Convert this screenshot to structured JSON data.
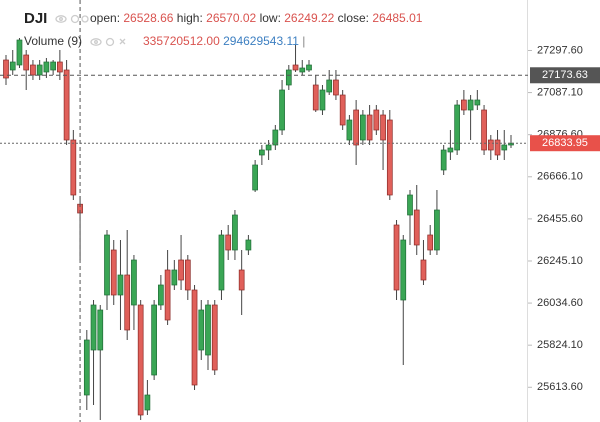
{
  "chart_data": {
    "type": "candlestick",
    "legend": {
      "symbol": "DJI",
      "open_label": "open:",
      "open": "26528.66",
      "high_label": "high:",
      "high": "26570.02",
      "low_label": "low:",
      "low": "26249.22",
      "close_label": "close:",
      "close": "26485.01",
      "volume_label": "Volume (9)",
      "volume": "335720512.00",
      "volume_ma": "294629543.11",
      "separator": "|"
    },
    "open": [
      27250,
      27200,
      27225,
      27275,
      27225,
      27175,
      27190,
      27200,
      27240,
      27200,
      26850,
      26529,
      25575,
      25800,
      25800,
      26075,
      26300,
      26075,
      26175,
      26025,
      26025,
      25500,
      25675,
      26025,
      26200,
      26125,
      26250,
      26250,
      26100,
      25800,
      25775,
      26025,
      26100,
      26375,
      26300,
      26200,
      26300,
      26600,
      26775,
      26800,
      26825,
      26900,
      27125,
      27225,
      27190,
      27200,
      27125,
      27000,
      27090,
      27150,
      27075,
      26850,
      27000,
      26850,
      26975,
      27000,
      26975,
      26950,
      26425,
      26050,
      26475,
      26500,
      26250,
      26375,
      26300,
      26700,
      26790,
      26800,
      27050,
      27000,
      27025,
      27000,
      26850,
      26850,
      26800,
      26825
    ],
    "high": [
      27275,
      27300,
      27360,
      27300,
      27250,
      27250,
      27260,
      27250,
      27300,
      27250,
      26900,
      26570,
      25900,
      26050,
      26025,
      26400,
      26350,
      26350,
      26400,
      26275,
      26050,
      25650,
      26050,
      26175,
      26300,
      26250,
      26375,
      26275,
      26125,
      26050,
      26050,
      26050,
      26400,
      26425,
      26500,
      26300,
      26375,
      26750,
      26825,
      26850,
      26925,
      27150,
      27225,
      27325,
      27250,
      27250,
      27175,
      27125,
      27200,
      27200,
      27100,
      26975,
      27050,
      27000,
      27025,
      27025,
      27000,
      27000,
      26450,
      26375,
      26600,
      26625,
      26350,
      26425,
      26600,
      26825,
      26900,
      27050,
      27100,
      27075,
      27100,
      27025,
      26875,
      26900,
      26900,
      26875
    ],
    "low": [
      27125,
      27175,
      27210,
      27100,
      27150,
      27150,
      27160,
      27175,
      27150,
      26825,
      26550,
      26249,
      25500,
      25525,
      25450,
      26000,
      26025,
      25900,
      25850,
      25900,
      25450,
      25475,
      25650,
      26000,
      25925,
      26100,
      26100,
      26050,
      25600,
      25750,
      25700,
      25675,
      26050,
      26250,
      26250,
      25975,
      26275,
      26590,
      26725,
      26750,
      26800,
      26875,
      27100,
      27190,
      27175,
      27190,
      26990,
      26975,
      27075,
      27050,
      26900,
      26825,
      26725,
      26825,
      26825,
      26875,
      26700,
      26550,
      26050,
      25725,
      26325,
      26275,
      26125,
      26275,
      26275,
      26675,
      26750,
      26775,
      26975,
      26850,
      27000,
      26775,
      26750,
      26750,
      26750,
      26810
    ],
    "close": [
      27160,
      27240,
      27350,
      27200,
      27175,
      27225,
      27240,
      27240,
      27190,
      26850,
      26575,
      26485,
      25850,
      26025,
      26000,
      26375,
      26075,
      26175,
      25900,
      26250,
      25475,
      25575,
      26025,
      26125,
      25950,
      26200,
      26150,
      26100,
      25625,
      26000,
      26025,
      25700,
      26375,
      26300,
      26475,
      26100,
      26350,
      26725,
      26800,
      26825,
      26900,
      27100,
      27200,
      27200,
      27210,
      27225,
      27000,
      27100,
      27150,
      27075,
      26925,
      26950,
      26825,
      26975,
      26850,
      26900,
      26850,
      26575,
      26100,
      26350,
      26575,
      26325,
      26150,
      26300,
      26500,
      26800,
      26810,
      27025,
      27000,
      27050,
      27050,
      26800,
      26800,
      26775,
      26825,
      26834
    ],
    "up_color": "#3aa655",
    "down_color": "#e0605a",
    "ylim": [
      25440,
      27550
    ],
    "yticks": [
      {
        "value": 27297.6,
        "label": "27297.60"
      },
      {
        "value": 27087.1,
        "label": "27087.10"
      },
      {
        "value": 26876.6,
        "label": "26876.60"
      },
      {
        "value": 26666.1,
        "label": "26666.10"
      },
      {
        "value": 26455.6,
        "label": "26455.60"
      },
      {
        "value": 26245.1,
        "label": "26245.10"
      },
      {
        "value": 26034.6,
        "label": "26034.60"
      },
      {
        "value": 25824.1,
        "label": "25824.10"
      },
      {
        "value": 25613.6,
        "label": "25613.60"
      }
    ],
    "crosshair": {
      "index": 11,
      "value": 27173.63,
      "color": "#555555"
    },
    "last_price": {
      "value": 26833.95,
      "color": "#e8514a"
    }
  }
}
